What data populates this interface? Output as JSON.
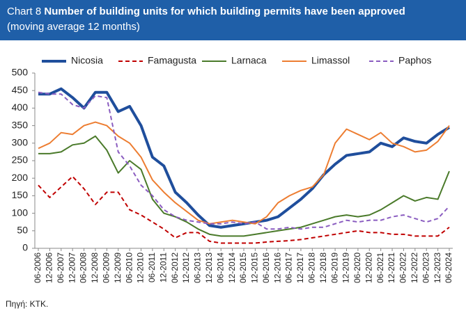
{
  "chart_data": {
    "type": "line",
    "chart_number": "Chart 8",
    "title": "Number of building units for which building permits have been approved",
    "subtitle": "(moving average 12 months)",
    "source": "Πηγή: ΚΤΚ.",
    "categories": [
      "06-2006",
      "12-2006",
      "06-2007",
      "12-2007",
      "06-2008",
      "12-2008",
      "06-2009",
      "12-2009",
      "06-2010",
      "12-2010",
      "06-2011",
      "12-2011",
      "06-2012",
      "12-2012",
      "06-2013",
      "12-2013",
      "06-2014",
      "12-2014",
      "06-2015",
      "12-2015",
      "06-2016",
      "12-2016",
      "06-2017",
      "12-2017",
      "06-2018",
      "12-2018",
      "06-2019",
      "12-2019",
      "06-2020",
      "12-2020",
      "06-2021",
      "12-2021",
      "06-2022",
      "12-2022",
      "06-2023",
      "12-2023",
      "06-2024"
    ],
    "series": [
      {
        "name": "Nicosia",
        "color": "#1f4e9c",
        "width": 4,
        "dashed": false,
        "values": [
          440,
          440,
          455,
          430,
          400,
          445,
          445,
          390,
          405,
          350,
          260,
          235,
          160,
          130,
          95,
          65,
          60,
          65,
          70,
          75,
          80,
          90,
          115,
          140,
          170,
          210,
          240,
          265,
          270,
          275,
          300,
          290,
          315,
          305,
          300,
          325,
          345
        ]
      },
      {
        "name": "Famagusta",
        "color": "#c00000",
        "width": 2,
        "dashed": true,
        "values": [
          180,
          145,
          175,
          205,
          170,
          125,
          160,
          160,
          110,
          95,
          75,
          55,
          30,
          45,
          45,
          20,
          15,
          15,
          15,
          15,
          18,
          20,
          22,
          25,
          30,
          35,
          40,
          45,
          50,
          45,
          45,
          40,
          40,
          35,
          35,
          35,
          60
        ]
      },
      {
        "name": "Larnaca",
        "color": "#4a7a2a",
        "width": 2,
        "dashed": false,
        "values": [
          270,
          270,
          275,
          295,
          300,
          320,
          280,
          215,
          250,
          225,
          140,
          100,
          90,
          75,
          55,
          40,
          35,
          35,
          35,
          40,
          45,
          50,
          55,
          60,
          70,
          80,
          90,
          95,
          90,
          95,
          110,
          130,
          150,
          135,
          145,
          140,
          220
        ]
      },
      {
        "name": "Limassol",
        "color": "#ed7d31",
        "width": 2,
        "dashed": false,
        "values": [
          285,
          300,
          330,
          325,
          350,
          360,
          350,
          320,
          300,
          260,
          195,
          160,
          130,
          105,
          80,
          70,
          75,
          80,
          75,
          70,
          90,
          130,
          150,
          165,
          175,
          210,
          300,
          340,
          325,
          310,
          330,
          300,
          290,
          275,
          280,
          305,
          350
        ]
      },
      {
        "name": "Paphos",
        "color": "#8a5cc0",
        "width": 2,
        "dashed": true,
        "values": [
          445,
          440,
          440,
          410,
          400,
          435,
          430,
          275,
          235,
          180,
          150,
          110,
          90,
          80,
          75,
          70,
          70,
          75,
          70,
          75,
          55,
          55,
          60,
          55,
          60,
          60,
          70,
          80,
          75,
          80,
          80,
          90,
          95,
          85,
          75,
          85,
          120
        ]
      }
    ],
    "ylim": [
      0,
      500
    ],
    "yticks": [
      0,
      50,
      100,
      150,
      200,
      250,
      300,
      350,
      400,
      450,
      500
    ]
  }
}
